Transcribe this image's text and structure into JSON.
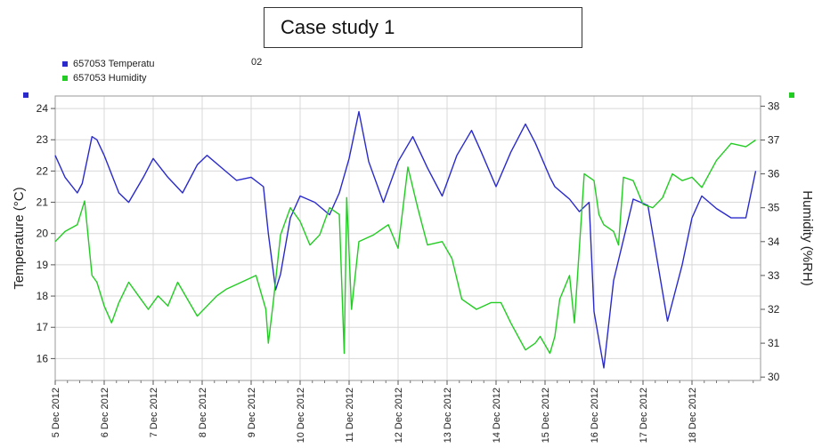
{
  "header": {
    "title": "Case study 1"
  },
  "legend": {
    "items": [
      {
        "label": "657053  Temperatu",
        "color": "#2a2acc"
      },
      {
        "label": "657053  Humidity",
        "color": "#22cc22"
      }
    ],
    "extra": "02"
  },
  "chart_data": {
    "type": "line",
    "xlabel": "",
    "ylabel": "Temperature (°C)",
    "y2label": "Humidity (%RH)",
    "ylim": [
      15.3,
      24.4
    ],
    "y2lim": [
      29.9,
      38.3
    ],
    "yticks": [
      16,
      17,
      18,
      19,
      20,
      21,
      22,
      23,
      24
    ],
    "y2ticks": [
      30,
      31,
      32,
      33,
      34,
      35,
      36,
      37,
      38
    ],
    "xlim": [
      0,
      14.4
    ],
    "x_tick_labels": [
      "5 Dec 2012",
      "6 Dec 2012",
      "7 Dec 2012",
      "8 Dec 2012",
      "9 Dec 2012",
      "10 Dec 2012",
      "11 Dec 2012",
      "12 Dec 2012",
      "13 Dec 2012",
      "14 Dec 2012",
      "15 Dec 2012",
      "16 Dec 2012",
      "17 Dec 2012",
      "18 Dec 2012"
    ],
    "grid": true,
    "series": [
      {
        "name": "657053  Temperatu",
        "axis": "left",
        "color": "#2a2acc",
        "x": [
          0,
          0.2,
          0.45,
          0.55,
          0.75,
          0.85,
          1.0,
          1.3,
          1.5,
          1.8,
          2.0,
          2.3,
          2.6,
          2.9,
          3.1,
          3.4,
          3.7,
          4.0,
          4.25,
          4.35,
          4.5,
          4.6,
          4.8,
          5.0,
          5.3,
          5.6,
          5.8,
          6.0,
          6.2,
          6.4,
          6.7,
          7.0,
          7.3,
          7.6,
          7.9,
          8.2,
          8.5,
          8.7,
          9.0,
          9.3,
          9.6,
          9.8,
          10.1,
          10.2,
          10.5,
          10.7,
          10.9,
          11.0,
          11.2,
          11.4,
          11.8,
          12.1,
          12.5,
          12.8,
          13.0,
          13.2,
          13.5,
          13.8,
          14.1,
          14.3
        ],
        "values": [
          22.5,
          21.8,
          21.3,
          21.6,
          23.1,
          23.0,
          22.5,
          21.3,
          21.0,
          21.8,
          22.4,
          21.8,
          21.3,
          22.2,
          22.5,
          22.1,
          21.7,
          21.8,
          21.5,
          20.0,
          18.2,
          18.7,
          20.5,
          21.2,
          21.0,
          20.6,
          21.3,
          22.4,
          23.9,
          22.3,
          21.0,
          22.3,
          23.1,
          22.1,
          21.2,
          22.5,
          23.3,
          22.6,
          21.5,
          22.6,
          23.5,
          22.9,
          21.8,
          21.5,
          21.1,
          20.7,
          21.0,
          17.5,
          15.7,
          18.5,
          21.1,
          20.9,
          17.2,
          19.0,
          20.5,
          21.2,
          20.8,
          20.5,
          20.5,
          22.0
        ]
      },
      {
        "name": "657053  Humidity",
        "axis": "right",
        "color": "#22cc22",
        "x": [
          0,
          0.2,
          0.45,
          0.6,
          0.75,
          0.85,
          1.0,
          1.15,
          1.3,
          1.5,
          1.7,
          1.9,
          2.1,
          2.3,
          2.5,
          2.7,
          2.9,
          3.1,
          3.3,
          3.5,
          3.8,
          4.1,
          4.3,
          4.35,
          4.45,
          4.6,
          4.8,
          5.0,
          5.2,
          5.4,
          5.6,
          5.8,
          5.9,
          5.95,
          6.05,
          6.2,
          6.5,
          6.8,
          7.0,
          7.2,
          7.4,
          7.6,
          7.9,
          8.1,
          8.3,
          8.6,
          8.9,
          9.1,
          9.3,
          9.6,
          9.8,
          9.9,
          10.1,
          10.2,
          10.3,
          10.5,
          10.6,
          10.8,
          11.0,
          11.1,
          11.2,
          11.4,
          11.5,
          11.6,
          11.8,
          12.0,
          12.2,
          12.4,
          12.6,
          12.8,
          13.0,
          13.2,
          13.5,
          13.8,
          14.1,
          14.3
        ],
        "values": [
          34.0,
          34.3,
          34.5,
          35.2,
          33.0,
          32.8,
          32.1,
          31.6,
          32.2,
          32.8,
          32.4,
          32.0,
          32.4,
          32.1,
          32.8,
          32.3,
          31.8,
          32.1,
          32.4,
          32.6,
          32.8,
          33.0,
          32.0,
          31.0,
          32.2,
          34.2,
          35.0,
          34.6,
          33.9,
          34.2,
          35.0,
          34.8,
          30.7,
          35.3,
          32.0,
          34.0,
          34.2,
          34.5,
          33.8,
          36.2,
          35.0,
          33.9,
          34.0,
          33.5,
          32.3,
          32.0,
          32.2,
          32.2,
          31.6,
          30.8,
          31.0,
          31.2,
          30.7,
          31.2,
          32.3,
          33.0,
          31.6,
          36.0,
          35.8,
          34.8,
          34.5,
          34.3,
          33.9,
          35.9,
          35.8,
          35.1,
          35.0,
          35.3,
          36.0,
          35.8,
          35.9,
          35.6,
          36.4,
          36.9,
          36.8,
          37.0
        ]
      }
    ]
  }
}
